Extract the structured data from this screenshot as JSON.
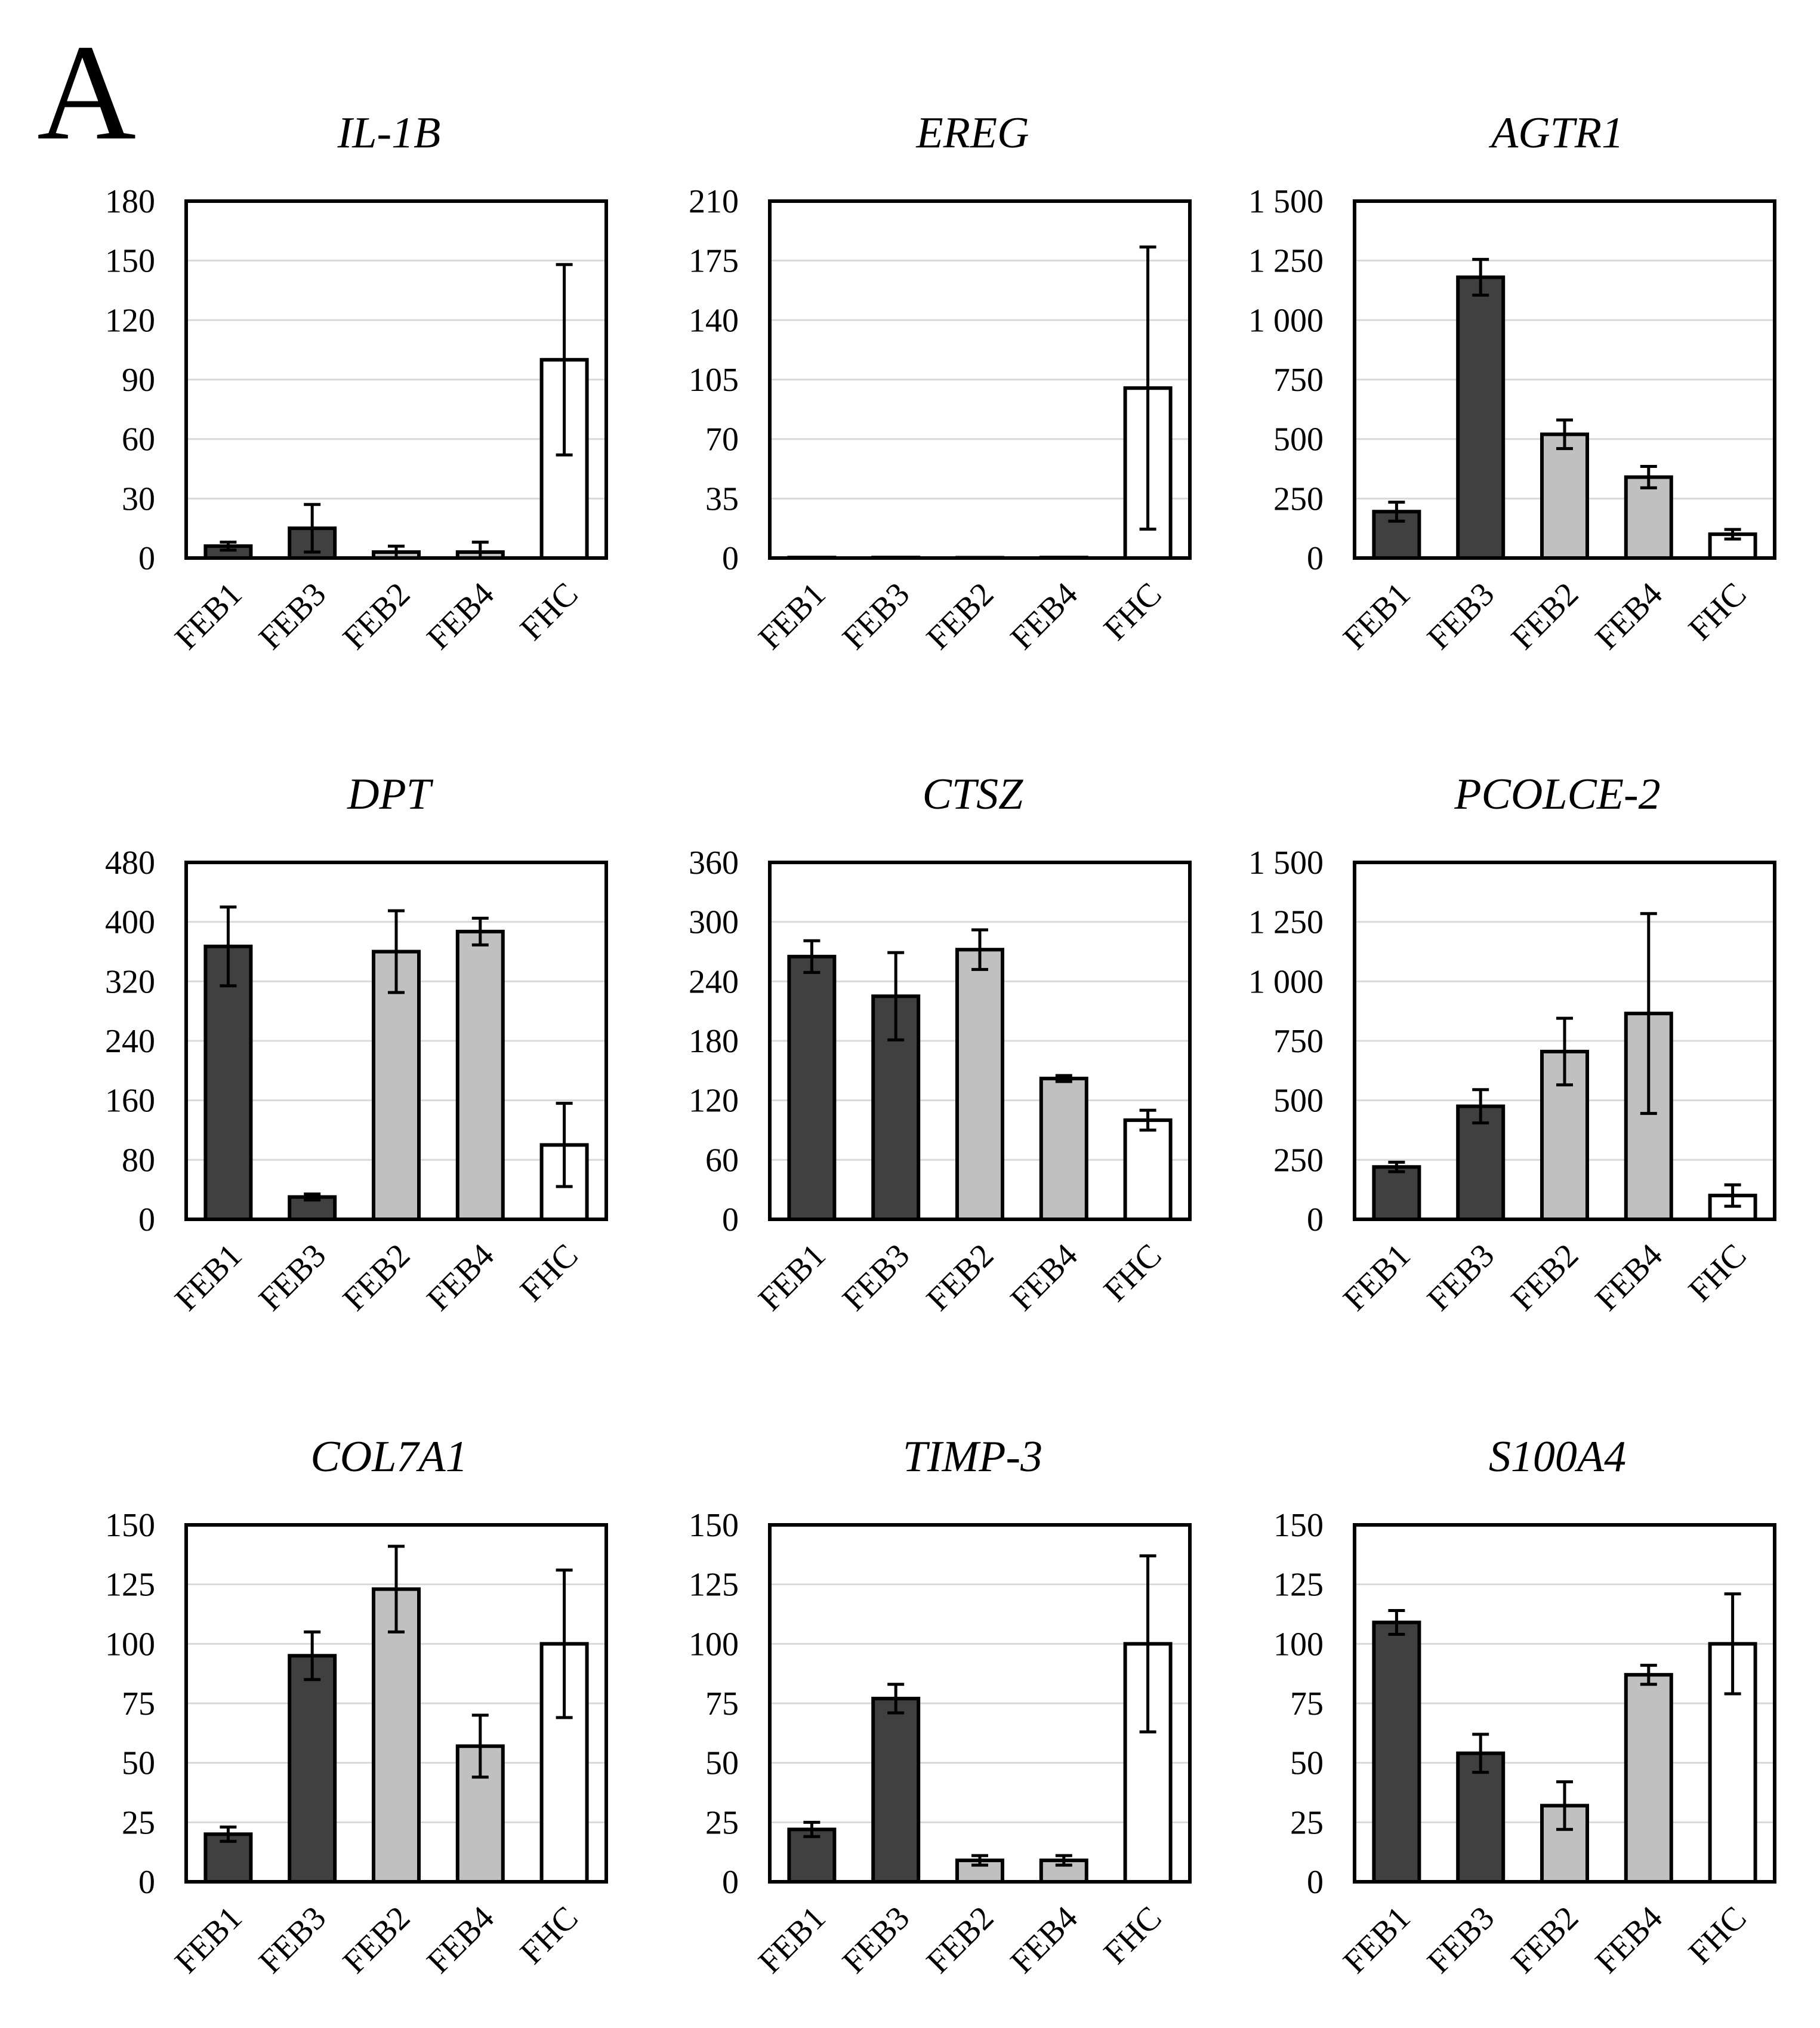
{
  "panel_label": "A",
  "colors": {
    "dark": "#404040",
    "light": "#c0c0c0",
    "white": "#ffffff",
    "grid": "#d9d9d9",
    "axis": "#000000"
  },
  "chart_data": [
    {
      "type": "bar",
      "title": "IL-1B",
      "title_italic": true,
      "categories": [
        "FEB1",
        "FEB3",
        "FEB2",
        "FEB4",
        "FHC"
      ],
      "values": [
        6,
        15,
        3,
        3,
        100
      ],
      "errors": [
        2,
        12,
        3,
        5,
        48
      ],
      "bar_colors": [
        "dark",
        "dark",
        "light",
        "light",
        "white"
      ],
      "ylim": [
        0,
        180
      ],
      "yticks": [
        0,
        30,
        60,
        90,
        120,
        150,
        180
      ],
      "ytick_labels": [
        "0",
        "30",
        "60",
        "90",
        "120",
        "150",
        "180"
      ]
    },
    {
      "type": "bar",
      "title": "EREG",
      "title_italic": true,
      "categories": [
        "FEB1",
        "FEB3",
        "FEB2",
        "FEB4",
        "FHC"
      ],
      "values": [
        0.3,
        0.3,
        0.2,
        0.3,
        100
      ],
      "errors": [
        0,
        0,
        0,
        0,
        83
      ],
      "bar_colors": [
        "dark",
        "dark",
        "light",
        "light",
        "white"
      ],
      "ylim": [
        0,
        210
      ],
      "yticks": [
        0,
        35,
        70,
        105,
        140,
        175,
        210
      ],
      "ytick_labels": [
        "0",
        "35",
        "70",
        "105",
        "140",
        "175",
        "210"
      ]
    },
    {
      "type": "bar",
      "title": "AGTR1",
      "title_italic": true,
      "categories": [
        "FEB1",
        "FEB3",
        "FEB2",
        "FEB4",
        "FHC"
      ],
      "values": [
        195,
        1180,
        520,
        340,
        100
      ],
      "errors": [
        40,
        75,
        60,
        45,
        20
      ],
      "bar_colors": [
        "dark",
        "dark",
        "light",
        "light",
        "white"
      ],
      "ylim": [
        0,
        1500
      ],
      "yticks": [
        0,
        250,
        500,
        750,
        1000,
        1250,
        1500
      ],
      "ytick_labels": [
        "0",
        "250",
        "500",
        "750",
        "1 000",
        "1 250",
        "1 500"
      ]
    },
    {
      "type": "bar",
      "title": "DPT",
      "title_italic": true,
      "categories": [
        "FEB1",
        "FEB3",
        "FEB2",
        "FEB4",
        "FHC"
      ],
      "values": [
        367,
        30,
        360,
        387,
        100
      ],
      "errors": [
        53,
        4,
        55,
        18,
        56
      ],
      "bar_colors": [
        "dark",
        "dark",
        "light",
        "light",
        "white"
      ],
      "ylim": [
        0,
        480
      ],
      "yticks": [
        0,
        80,
        160,
        240,
        320,
        400,
        480
      ],
      "ytick_labels": [
        "0",
        "80",
        "160",
        "240",
        "320",
        "400",
        "480"
      ]
    },
    {
      "type": "bar",
      "title": "CTSZ",
      "title_italic": true,
      "categories": [
        "FEB1",
        "FEB3",
        "FEB2",
        "FEB4",
        "FHC"
      ],
      "values": [
        265,
        225,
        272,
        142,
        100
      ],
      "errors": [
        16,
        44,
        20,
        3,
        10
      ],
      "bar_colors": [
        "dark",
        "dark",
        "light",
        "light",
        "white"
      ],
      "ylim": [
        0,
        360
      ],
      "yticks": [
        0,
        60,
        120,
        180,
        240,
        300,
        360
      ],
      "ytick_labels": [
        "0",
        "60",
        "120",
        "180",
        "240",
        "300",
        "360"
      ]
    },
    {
      "type": "bar",
      "title": "PCOLCE-2",
      "title_italic": true,
      "categories": [
        "FEB1",
        "FEB3",
        "FEB2",
        "FEB4",
        "FHC"
      ],
      "values": [
        220,
        475,
        705,
        865,
        100
      ],
      "errors": [
        20,
        70,
        140,
        420,
        45
      ],
      "bar_colors": [
        "dark",
        "dark",
        "light",
        "light",
        "white"
      ],
      "ylim": [
        0,
        1500
      ],
      "yticks": [
        0,
        250,
        500,
        750,
        1000,
        1250,
        1500
      ],
      "ytick_labels": [
        "0",
        "250",
        "500",
        "750",
        "1 000",
        "1 250",
        "1 500"
      ]
    },
    {
      "type": "bar",
      "title": "COL7A1",
      "title_italic": true,
      "categories": [
        "FEB1",
        "FEB3",
        "FEB2",
        "FEB4",
        "FHC"
      ],
      "values": [
        20,
        95,
        123,
        57,
        100
      ],
      "errors": [
        3,
        10,
        18,
        13,
        31
      ],
      "bar_colors": [
        "dark",
        "dark",
        "light",
        "light",
        "white"
      ],
      "ylim": [
        0,
        150
      ],
      "yticks": [
        0,
        25,
        50,
        75,
        100,
        125,
        150
      ],
      "ytick_labels": [
        "0",
        "25",
        "50",
        "75",
        "100",
        "125",
        "150"
      ]
    },
    {
      "type": "bar",
      "title": "TIMP-3",
      "title_italic": true,
      "categories": [
        "FEB1",
        "FEB3",
        "FEB2",
        "FEB4",
        "FHC"
      ],
      "values": [
        22,
        77,
        9,
        9,
        100
      ],
      "errors": [
        3,
        6,
        2,
        2,
        37
      ],
      "bar_colors": [
        "dark",
        "dark",
        "light",
        "light",
        "white"
      ],
      "ylim": [
        0,
        150
      ],
      "yticks": [
        0,
        25,
        50,
        75,
        100,
        125,
        150
      ],
      "ytick_labels": [
        "0",
        "25",
        "50",
        "75",
        "100",
        "125",
        "150"
      ]
    },
    {
      "type": "bar",
      "title": "S100A4",
      "title_italic": true,
      "categories": [
        "FEB1",
        "FEB3",
        "FEB2",
        "FEB4",
        "FHC"
      ],
      "values": [
        109,
        54,
        32,
        87,
        100
      ],
      "errors": [
        5,
        8,
        10,
        4,
        21
      ],
      "bar_colors": [
        "dark",
        "dark",
        "light",
        "light",
        "white"
      ],
      "ylim": [
        0,
        150
      ],
      "yticks": [
        0,
        25,
        50,
        75,
        100,
        125,
        150
      ],
      "ytick_labels": [
        "0",
        "25",
        "50",
        "75",
        "100",
        "125",
        "150"
      ]
    }
  ]
}
